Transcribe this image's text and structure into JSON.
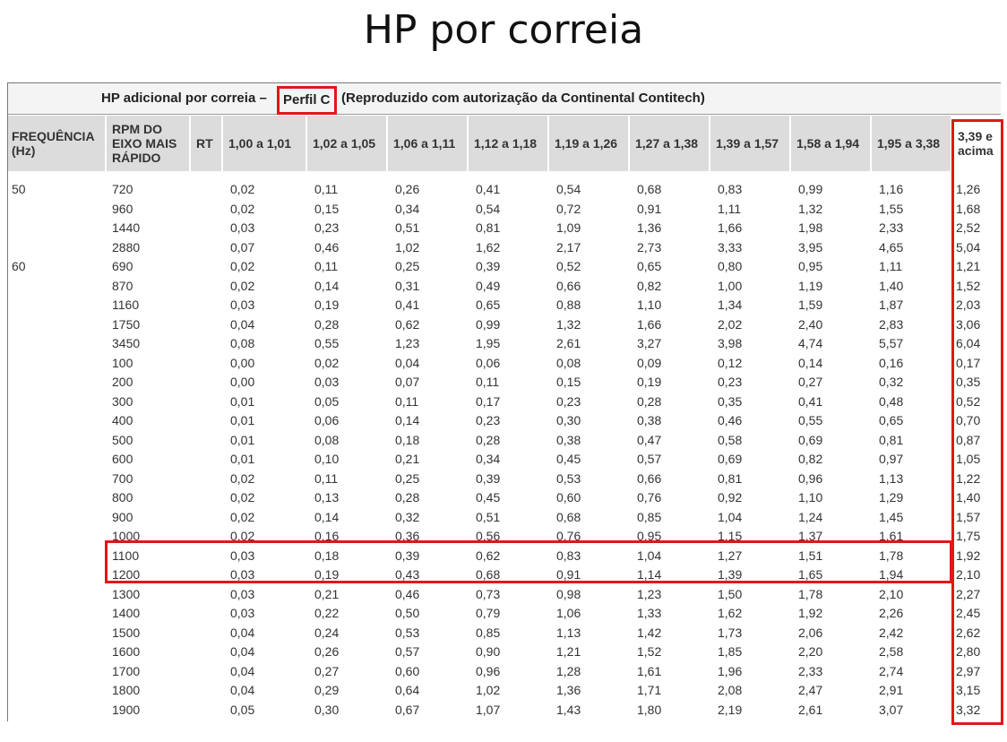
{
  "page": {
    "title": "HP por correia"
  },
  "table": {
    "caption": {
      "prefix": "HP adicional por correia –",
      "profile": "Perfil C",
      "suffix": "(Reproduzido com autorização da Continental Contitech)"
    },
    "headers": {
      "freq": [
        "FREQUÊNCIA",
        "(Hz)"
      ],
      "rpm": [
        "RPM DO",
        "EIXO MAIS",
        "RÁPIDO"
      ],
      "rt": "RT",
      "ranges": [
        "1,00 a 1,01",
        "1,02 a 1,05",
        "1,06 a 1,11",
        "1,12 a 1,18",
        "1,19 a 1,26",
        "1,27 a 1,38",
        "1,39 a 1,57",
        "1,58 a 1,94",
        "1,95 a 3,38"
      ],
      "last": [
        "3,39 e",
        "acima"
      ]
    },
    "rows": [
      {
        "freq": "50",
        "rpm": "720",
        "v": [
          "0,02",
          "0,11",
          "0,26",
          "0,41",
          "0,54",
          "0,68",
          "0,83",
          "0,99",
          "1,16",
          "1,26"
        ]
      },
      {
        "freq": "",
        "rpm": "960",
        "v": [
          "0,02",
          "0,15",
          "0,34",
          "0,54",
          "0,72",
          "0,91",
          "1,11",
          "1,32",
          "1,55",
          "1,68"
        ]
      },
      {
        "freq": "",
        "rpm": "1440",
        "v": [
          "0,03",
          "0,23",
          "0,51",
          "0,81",
          "1,09",
          "1,36",
          "1,66",
          "1,98",
          "2,33",
          "2,52"
        ]
      },
      {
        "freq": "",
        "rpm": "2880",
        "v": [
          "0,07",
          "0,46",
          "1,02",
          "1,62",
          "2,17",
          "2,73",
          "3,33",
          "3,95",
          "4,65",
          "5,04"
        ]
      },
      {
        "freq": "60",
        "rpm": "690",
        "v": [
          "0,02",
          "0,11",
          "0,25",
          "0,39",
          "0,52",
          "0,65",
          "0,80",
          "0,95",
          "1,11",
          "1,21"
        ]
      },
      {
        "freq": "",
        "rpm": "870",
        "v": [
          "0,02",
          "0,14",
          "0,31",
          "0,49",
          "0,66",
          "0,82",
          "1,00",
          "1,19",
          "1,40",
          "1,52"
        ]
      },
      {
        "freq": "",
        "rpm": "1160",
        "v": [
          "0,03",
          "0,19",
          "0,41",
          "0,65",
          "0,88",
          "1,10",
          "1,34",
          "1,59",
          "1,87",
          "2,03"
        ]
      },
      {
        "freq": "",
        "rpm": "1750",
        "v": [
          "0,04",
          "0,28",
          "0,62",
          "0,99",
          "1,32",
          "1,66",
          "2,02",
          "2,40",
          "2,83",
          "3,06"
        ]
      },
      {
        "freq": "",
        "rpm": "3450",
        "v": [
          "0,08",
          "0,55",
          "1,23",
          "1,95",
          "2,61",
          "3,27",
          "3,98",
          "4,74",
          "5,57",
          "6,04"
        ]
      },
      {
        "freq": "",
        "rpm": "100",
        "v": [
          "0,00",
          "0,02",
          "0,04",
          "0,06",
          "0,08",
          "0,09",
          "0,12",
          "0,14",
          "0,16",
          "0,17"
        ]
      },
      {
        "freq": "",
        "rpm": "200",
        "v": [
          "0,00",
          "0,03",
          "0,07",
          "0,11",
          "0,15",
          "0,19",
          "0,23",
          "0,27",
          "0,32",
          "0,35"
        ]
      },
      {
        "freq": "",
        "rpm": "300",
        "v": [
          "0,01",
          "0,05",
          "0,11",
          "0,17",
          "0,23",
          "0,28",
          "0,35",
          "0,41",
          "0,48",
          "0,52"
        ]
      },
      {
        "freq": "",
        "rpm": "400",
        "v": [
          "0,01",
          "0,06",
          "0,14",
          "0,23",
          "0,30",
          "0,38",
          "0,46",
          "0,55",
          "0,65",
          "0,70"
        ]
      },
      {
        "freq": "",
        "rpm": "500",
        "v": [
          "0,01",
          "0,08",
          "0,18",
          "0,28",
          "0,38",
          "0,47",
          "0,58",
          "0,69",
          "0,81",
          "0,87"
        ]
      },
      {
        "freq": "",
        "rpm": "600",
        "v": [
          "0,01",
          "0,10",
          "0,21",
          "0,34",
          "0,45",
          "0,57",
          "0,69",
          "0,82",
          "0,97",
          "1,05"
        ]
      },
      {
        "freq": "",
        "rpm": "700",
        "v": [
          "0,02",
          "0,11",
          "0,25",
          "0,39",
          "0,53",
          "0,66",
          "0,81",
          "0,96",
          "1,13",
          "1,22"
        ]
      },
      {
        "freq": "",
        "rpm": "800",
        "v": [
          "0,02",
          "0,13",
          "0,28",
          "0,45",
          "0,60",
          "0,76",
          "0,92",
          "1,10",
          "1,29",
          "1,40"
        ]
      },
      {
        "freq": "",
        "rpm": "900",
        "v": [
          "0,02",
          "0,14",
          "0,32",
          "0,51",
          "0,68",
          "0,85",
          "1,04",
          "1,24",
          "1,45",
          "1,57"
        ]
      },
      {
        "freq": "",
        "rpm": "1000",
        "v": [
          "0,02",
          "0,16",
          "0,36",
          "0,56",
          "0,76",
          "0,95",
          "1,15",
          "1,37",
          "1,61",
          "1,75"
        ]
      },
      {
        "freq": "",
        "rpm": "1100",
        "v": [
          "0,03",
          "0,18",
          "0,39",
          "0,62",
          "0,83",
          "1,04",
          "1,27",
          "1,51",
          "1,78",
          "1,92"
        ]
      },
      {
        "freq": "",
        "rpm": "1200",
        "v": [
          "0,03",
          "0,19",
          "0,43",
          "0,68",
          "0,91",
          "1,14",
          "1,39",
          "1,65",
          "1,94",
          "2,10"
        ]
      },
      {
        "freq": "",
        "rpm": "1300",
        "v": [
          "0,03",
          "0,21",
          "0,46",
          "0,73",
          "0,98",
          "1,23",
          "1,50",
          "1,78",
          "2,10",
          "2,27"
        ]
      },
      {
        "freq": "",
        "rpm": "1400",
        "v": [
          "0,03",
          "0,22",
          "0,50",
          "0,79",
          "1,06",
          "1,33",
          "1,62",
          "1,92",
          "2,26",
          "2,45"
        ]
      },
      {
        "freq": "",
        "rpm": "1500",
        "v": [
          "0,04",
          "0,24",
          "0,53",
          "0,85",
          "1,13",
          "1,42",
          "1,73",
          "2,06",
          "2,42",
          "2,62"
        ]
      },
      {
        "freq": "",
        "rpm": "1600",
        "v": [
          "0,04",
          "0,26",
          "0,57",
          "0,90",
          "1,21",
          "1,52",
          "1,85",
          "2,20",
          "2,58",
          "2,80"
        ]
      },
      {
        "freq": "",
        "rpm": "1700",
        "v": [
          "0,04",
          "0,27",
          "0,60",
          "0,96",
          "1,28",
          "1,61",
          "1,96",
          "2,33",
          "2,74",
          "2,97"
        ]
      },
      {
        "freq": "",
        "rpm": "1800",
        "v": [
          "0,04",
          "0,29",
          "0,64",
          "1,02",
          "1,36",
          "1,71",
          "2,08",
          "2,47",
          "2,91",
          "3,15"
        ]
      },
      {
        "freq": "",
        "rpm": "1900",
        "v": [
          "0,05",
          "0,30",
          "0,67",
          "1,07",
          "1,43",
          "1,80",
          "2,19",
          "2,61",
          "3,07",
          "3,32"
        ]
      }
    ]
  },
  "colors": {
    "highlight": "#e01818",
    "header_bg": "#dcdcdc"
  }
}
